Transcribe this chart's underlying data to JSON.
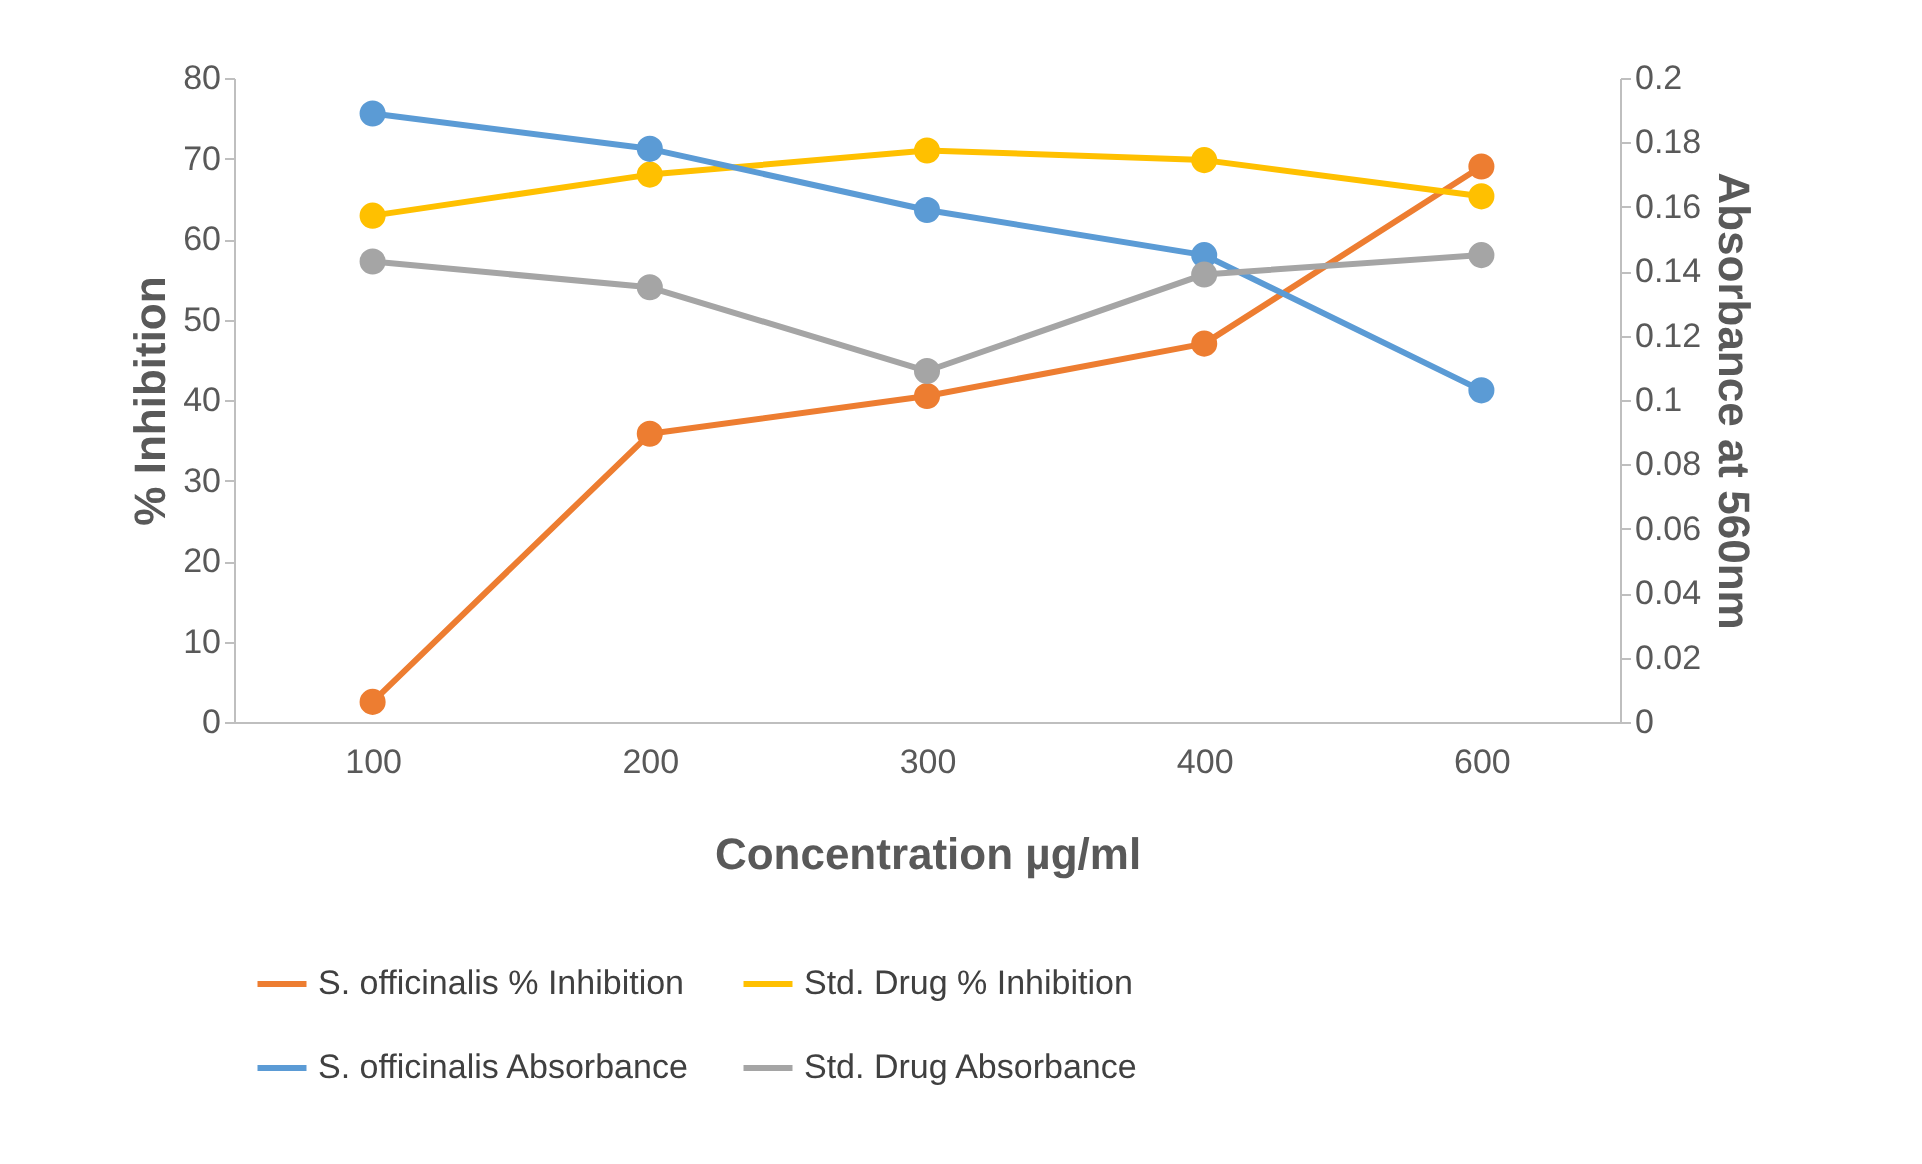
{
  "chart_data": {
    "type": "line",
    "xlabel": "Concentration µg/ml",
    "ylabel": "% Inhibition",
    "y2label": "Absorbance at 560nm",
    "categories": [
      "100",
      "200",
      "300",
      "400",
      "600"
    ],
    "ylim": [
      0,
      80
    ],
    "yticks": [
      0,
      10,
      20,
      30,
      40,
      50,
      60,
      70,
      80
    ],
    "y2lim": [
      0,
      0.2
    ],
    "y2ticks": [
      0,
      0.02,
      0.04,
      0.06,
      0.08,
      0.1,
      0.12,
      0.14,
      0.16,
      0.18,
      0.2
    ],
    "series": [
      {
        "name": "S. officinalis % Inhibition",
        "color": "#ed7d31",
        "values": [
          2.5,
          35.8,
          40.5,
          47,
          69
        ]
      },
      {
        "name": "Std. Drug % Inhibition",
        "color": "#ffc000",
        "values": [
          62.9,
          68,
          71,
          69.8,
          65.3
        ]
      },
      {
        "name": "S. officinalis Absorbance",
        "color": "#5b9bd5",
        "axis": "y2",
        "values": [
          0.189,
          0.178,
          0.159,
          0.145,
          0.103
        ]
      },
      {
        "name": "Std. Drug Absorbance",
        "color": "#a5a5a5",
        "axis": "y2",
        "values": [
          0.143,
          0.135,
          0.109,
          0.139,
          0.145
        ]
      }
    ],
    "marker": "circle",
    "line_style": "solid",
    "grid": false,
    "legend": "bottom"
  }
}
